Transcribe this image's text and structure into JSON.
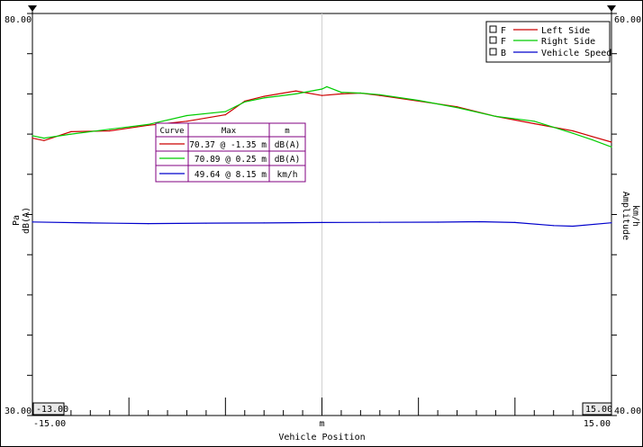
{
  "chart_data": {
    "type": "line",
    "xlabel": "Vehicle Position",
    "x_unit": "m",
    "xlim": [
      -15,
      15
    ],
    "x_tick_labels": [
      "-15.00",
      "15.00"
    ],
    "cursor_left_label": "-13.00",
    "cursor_right_label": "15.00",
    "left_axis": {
      "label": "Pa",
      "unit": "dB(A)",
      "ylim": [
        30,
        80
      ],
      "tick_labels": [
        "80.00",
        "30.00"
      ]
    },
    "right_axis": {
      "label": "Amplitude",
      "unit": "km/h",
      "ylim": [
        40,
        60
      ],
      "tick_labels": [
        "60.00",
        "40.00"
      ]
    },
    "legend": {
      "position": "top-right",
      "items": [
        {
          "flag": "F",
          "name": "Left Side",
          "color": "#cc0000"
        },
        {
          "flag": "F",
          "name": "Right Side",
          "color": "#00cc00"
        },
        {
          "flag": "B",
          "name": "Vehicle Speed",
          "color": "#0000cc"
        }
      ]
    },
    "table": {
      "headers": [
        "Curve",
        "Max",
        "m"
      ],
      "rows": [
        {
          "color": "#cc0000",
          "max": "70.37 @ -1.35  m",
          "unit": "dB(A)"
        },
        {
          "color": "#00cc00",
          "max": "70.89 @ 0.25  m",
          "unit": "dB(A)"
        },
        {
          "color": "#0000cc",
          "max": "49.64 @ 8.15  m",
          "unit": "km/h"
        }
      ]
    },
    "series": [
      {
        "name": "Left Side",
        "axis": "left",
        "color": "#cc0000",
        "x": [
          -15,
          -14.4,
          -13,
          -11,
          -9,
          -7,
          -5,
          -4,
          -3,
          -1.35,
          0,
          1,
          2,
          3,
          5,
          7,
          9,
          11,
          13,
          14,
          15
        ],
        "values": [
          64.5,
          64.2,
          65.3,
          65.4,
          66.1,
          66.6,
          67.4,
          69.1,
          69.7,
          70.37,
          69.8,
          70.0,
          70.1,
          69.8,
          69.1,
          68.4,
          67.2,
          66.3,
          65.4,
          64.7,
          64.0
        ]
      },
      {
        "name": "Right Side",
        "axis": "left",
        "color": "#00cc00",
        "x": [
          -15,
          -14.4,
          -13,
          -11,
          -9,
          -7,
          -5,
          -4,
          -3,
          -1.35,
          0,
          0.25,
          1,
          2,
          3,
          5,
          7,
          9,
          11,
          13,
          14,
          15
        ],
        "values": [
          64.8,
          64.5,
          65.0,
          65.6,
          66.2,
          67.3,
          67.8,
          69.0,
          69.5,
          70.0,
          70.6,
          70.89,
          70.2,
          70.1,
          69.9,
          69.2,
          68.3,
          67.2,
          66.6,
          65.1,
          64.3,
          63.4
        ]
      },
      {
        "name": "Vehicle Speed",
        "axis": "right",
        "color": "#0000cc",
        "x": [
          -15,
          -12,
          -9,
          -6,
          -3,
          0,
          3,
          6,
          8.15,
          10,
          12,
          13,
          15
        ],
        "values": [
          49.63,
          49.58,
          49.55,
          49.57,
          49.58,
          49.6,
          49.61,
          49.62,
          49.64,
          49.6,
          49.45,
          49.42,
          49.59
        ]
      }
    ]
  }
}
